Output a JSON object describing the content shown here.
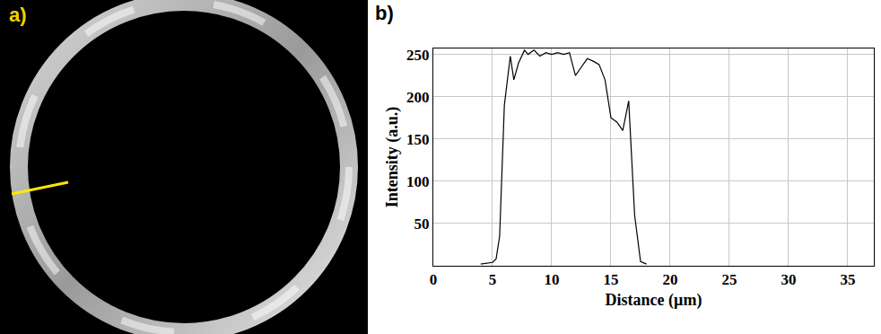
{
  "image_panel": {
    "label": "a)"
  },
  "chart_data": {
    "type": "line",
    "panel_label": "b)",
    "x_label": "Distance (µm)",
    "y_label": "Intensity (a.u.)",
    "x": [
      4,
      4.5,
      5,
      5.3,
      5.6,
      6,
      6.5,
      6.8,
      7.2,
      7.7,
      8,
      8.5,
      9,
      9.5,
      10,
      10.5,
      11,
      11.5,
      12,
      12.5,
      13,
      13.5,
      14,
      14.5,
      15,
      15.5,
      16,
      16.5,
      17,
      17.5,
      18
    ],
    "values": [
      2,
      3,
      4,
      8,
      35,
      190,
      248,
      220,
      240,
      255,
      250,
      255,
      248,
      252,
      250,
      252,
      250,
      252,
      225,
      235,
      245,
      242,
      238,
      220,
      175,
      170,
      160,
      195,
      60,
      5,
      2
    ],
    "color": "#000000",
    "xlim": [
      0,
      37.2
    ],
    "xticks": [
      0,
      5,
      10,
      15,
      20,
      25,
      30,
      35
    ],
    "ylim": [
      0,
      257
    ],
    "yticks": [
      50,
      100,
      150,
      200,
      250
    ],
    "grid": true
  }
}
